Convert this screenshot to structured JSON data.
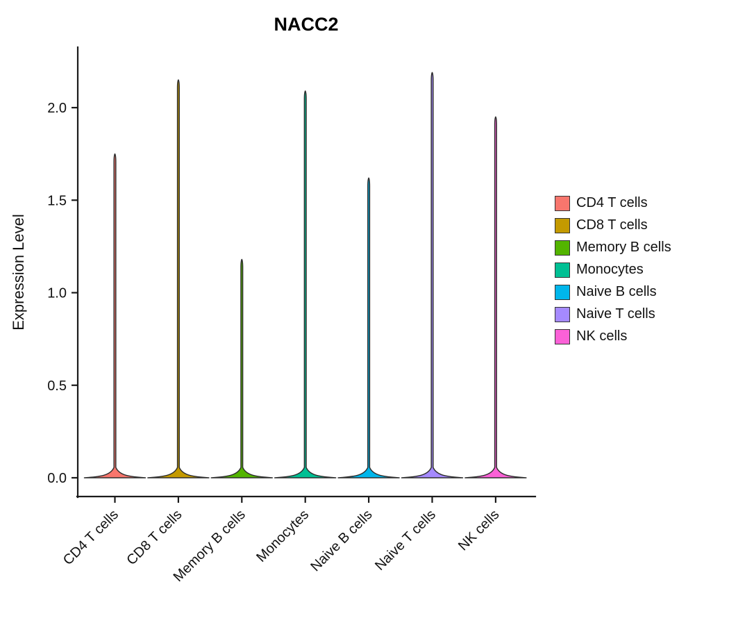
{
  "chart_data": {
    "type": "violin",
    "title": "NACC2",
    "ylabel": "Expression Level",
    "ylim": [
      0,
      2.3
    ],
    "yticks": [
      "0.0",
      "0.5",
      "1.0",
      "1.5",
      "2.0"
    ],
    "categories": [
      "CD4 T cells",
      "CD8 T cells",
      "Memory B cells",
      "Monocytes",
      "Naive B cells",
      "Naive T cells",
      "NK cells"
    ],
    "max_values": [
      1.75,
      2.15,
      1.18,
      2.09,
      1.62,
      2.19,
      1.95
    ],
    "baseline_value": 0.0,
    "colors": [
      "#F8766D",
      "#C49A00",
      "#53B400",
      "#00C094",
      "#00B6EB",
      "#A58AFF",
      "#FB61D7"
    ],
    "grid": false,
    "legend": {
      "position": "right",
      "labels": [
        "CD4 T cells",
        "CD8 T cells",
        "Memory B cells",
        "Monocytes",
        "Naive B cells",
        "Naive T cells",
        "NK cells"
      ]
    }
  }
}
